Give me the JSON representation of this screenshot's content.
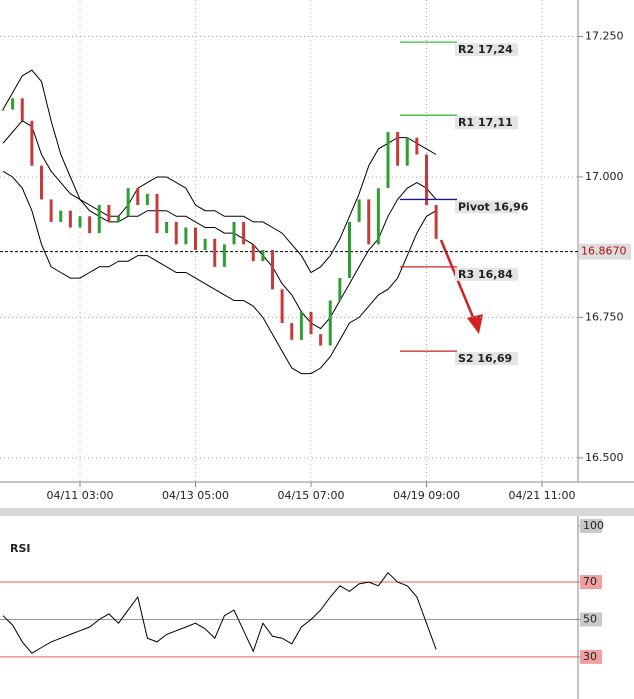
{
  "chart_data": [
    {
      "type": "candlestick",
      "categories": [
        null,
        null,
        null,
        null,
        null,
        null,
        null,
        null,
        "04/11 03:00",
        null,
        null,
        null,
        null,
        null,
        null,
        null,
        null,
        null,
        null,
        null,
        "04/13 05:00",
        null,
        null,
        null,
        null,
        null,
        null,
        null,
        null,
        null,
        null,
        null,
        "04/15 07:00",
        null,
        null,
        null,
        null,
        null,
        null,
        null,
        null,
        null,
        null,
        null,
        "04/19 09:00",
        null,
        null,
        null,
        null,
        null,
        null,
        null,
        null,
        null,
        null,
        null,
        "04/21 11:00",
        null,
        null
      ],
      "values": [
        17.12,
        17.14,
        17.1,
        17.02,
        16.96,
        16.92,
        16.94,
        16.91,
        16.93,
        16.9,
        16.95,
        16.92,
        16.93,
        16.98,
        16.95,
        16.97,
        16.9,
        16.92,
        16.88,
        16.91,
        16.87,
        16.89,
        16.84,
        16.88,
        16.92,
        16.88,
        16.85,
        16.87,
        16.8,
        16.74,
        16.71,
        16.76,
        16.72,
        16.7,
        16.78,
        16.82,
        16.92,
        16.96,
        16.88,
        16.98,
        17.08,
        17.02,
        17.07,
        17.04,
        16.95,
        16.89,
        null,
        null,
        null,
        null,
        null,
        null,
        null,
        null,
        null,
        null,
        null,
        null,
        null
      ],
      "bands": {
        "upper": [
          17.12,
          17.15,
          17.18,
          17.19,
          17.17,
          17.1,
          17.04,
          17.0,
          16.96,
          16.95,
          16.94,
          16.93,
          16.93,
          16.95,
          16.98,
          16.99,
          17.0,
          17.0,
          16.99,
          16.98,
          16.95,
          16.94,
          16.94,
          16.93,
          16.93,
          16.93,
          16.92,
          16.92,
          16.91,
          16.9,
          16.88,
          16.86,
          16.83,
          16.84,
          16.86,
          16.89,
          16.93,
          16.97,
          17.02,
          17.05,
          17.06,
          17.07,
          17.07,
          17.06,
          17.05,
          17.04,
          null,
          null,
          null,
          null,
          null,
          null,
          null,
          null,
          null,
          null,
          null,
          null,
          null
        ],
        "middle": [
          17.06,
          17.08,
          17.1,
          17.09,
          17.04,
          17.01,
          16.99,
          16.97,
          16.96,
          16.94,
          16.93,
          16.92,
          16.92,
          16.93,
          16.93,
          16.94,
          16.94,
          16.94,
          16.93,
          16.93,
          16.92,
          16.91,
          16.91,
          16.9,
          16.9,
          16.89,
          16.88,
          16.86,
          16.84,
          16.81,
          16.79,
          16.76,
          16.74,
          16.73,
          16.75,
          16.78,
          16.81,
          16.84,
          16.87,
          16.89,
          16.93,
          16.96,
          16.98,
          16.99,
          16.98,
          16.96,
          null,
          null,
          null,
          null,
          null,
          null,
          null,
          null,
          null,
          null,
          null,
          null,
          null
        ],
        "lower": [
          17.01,
          17.0,
          16.98,
          16.94,
          16.88,
          16.84,
          16.83,
          16.82,
          16.82,
          16.83,
          16.84,
          16.84,
          16.85,
          16.85,
          16.86,
          16.86,
          16.85,
          16.84,
          16.83,
          16.83,
          16.82,
          16.81,
          16.8,
          16.79,
          16.78,
          16.78,
          16.77,
          16.75,
          16.72,
          16.69,
          16.66,
          16.65,
          16.65,
          16.66,
          16.68,
          16.71,
          16.74,
          16.75,
          16.77,
          16.79,
          16.8,
          16.82,
          16.86,
          16.9,
          16.93,
          16.94,
          null,
          null,
          null,
          null,
          null,
          null,
          null,
          null,
          null,
          null,
          null,
          null,
          null
        ]
      },
      "up_color": "#2e9e2e",
      "down_color": "#c83a3a",
      "band_color": "#000000",
      "ylim": [
        16.457,
        17.315
      ],
      "yticks": [
        {
          "value": 17.25,
          "label": "17.250"
        },
        {
          "value": 17.0,
          "label": "17.000"
        },
        {
          "value": 16.75,
          "label": "16.750"
        },
        {
          "value": 16.5,
          "label": "16.500"
        }
      ],
      "last_price": {
        "value": 16.867,
        "label": "16.8670"
      },
      "levels": [
        {
          "label": "R2 17,24",
          "value": 17.24,
          "color": "#3cbc3c"
        },
        {
          "label": "R1 17,11",
          "value": 17.11,
          "color": "#3cbc3c"
        },
        {
          "label": "Pivot 16,96",
          "value": 16.96,
          "color": "#1a1a8c"
        },
        {
          "label": "R3 16,84",
          "value": 16.84,
          "color": "#d02020"
        },
        {
          "label": "S2 16,69",
          "value": 16.69,
          "color": "#d02020"
        }
      ]
    },
    {
      "type": "line",
      "title": "RSI",
      "values": [
        52,
        47,
        38,
        32,
        35,
        38,
        40,
        42,
        44,
        46,
        50,
        53,
        48,
        55,
        62,
        40,
        38,
        42,
        44,
        46,
        48,
        45,
        40,
        52,
        55,
        44,
        33,
        48,
        41,
        40,
        37,
        46,
        50,
        55,
        62,
        68,
        65,
        69,
        70,
        68,
        75,
        70,
        68,
        62,
        48,
        34,
        null,
        null,
        null,
        null,
        null,
        null,
        null,
        null,
        null,
        null,
        null,
        null,
        null
      ],
      "color": "#000000",
      "ylim": [
        7.5,
        105.3
      ],
      "yticks": [
        100,
        70,
        50,
        30
      ],
      "reference_lines": [
        {
          "value": 70,
          "color": "#e06060"
        },
        {
          "value": 50,
          "color": "#999999"
        },
        {
          "value": 30,
          "color": "#e06060"
        }
      ]
    }
  ]
}
